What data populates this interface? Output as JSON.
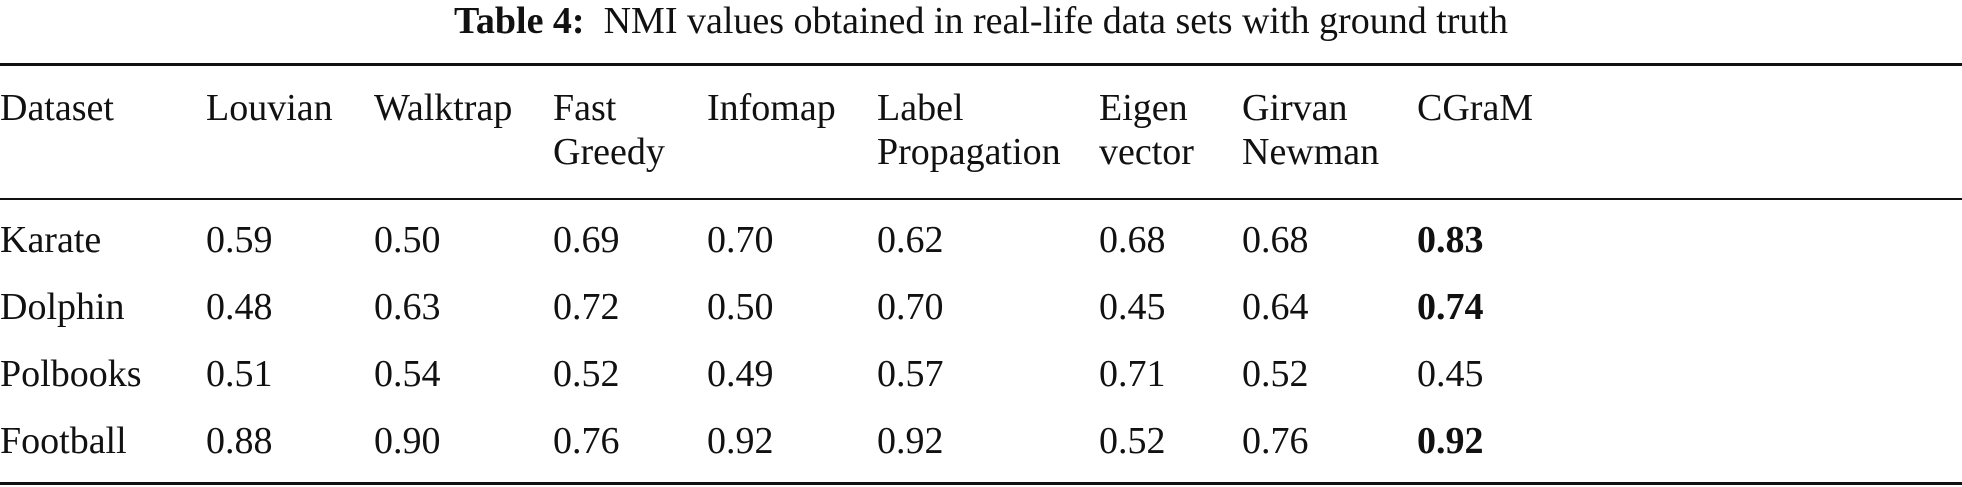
{
  "caption": {
    "label": "Table 4:",
    "text": "NMI values obtained in real-life data sets with ground truth"
  },
  "columns": [
    {
      "lines": [
        "Dataset"
      ]
    },
    {
      "lines": [
        "Louvian"
      ]
    },
    {
      "lines": [
        "Walktrap"
      ]
    },
    {
      "lines": [
        "Fast",
        "Greedy"
      ]
    },
    {
      "lines": [
        "Infomap"
      ]
    },
    {
      "lines": [
        "Label",
        "Propagation"
      ]
    },
    {
      "lines": [
        "Eigen",
        "vector"
      ]
    },
    {
      "lines": [
        "Girvan",
        "Newman"
      ]
    },
    {
      "lines": [
        "CGraM"
      ]
    }
  ],
  "rows": [
    {
      "cells": [
        "Karate",
        "0.59",
        "0.50",
        "0.69",
        "0.70",
        "0.62",
        "0.68",
        "0.68",
        "0.83"
      ],
      "bold": [
        8
      ]
    },
    {
      "cells": [
        "Dolphin",
        "0.48",
        "0.63",
        "0.72",
        "0.50",
        "0.70",
        "0.45",
        "0.64",
        "0.74"
      ],
      "bold": [
        8
      ]
    },
    {
      "cells": [
        "Polbooks",
        "0.51",
        "0.54",
        "0.52",
        "0.49",
        "0.57",
        "0.71",
        "0.52",
        "0.45"
      ],
      "bold": []
    },
    {
      "cells": [
        "Football",
        "0.88",
        "0.90",
        "0.76",
        "0.92",
        "0.92",
        "0.52",
        "0.76",
        "0.92"
      ],
      "bold": [
        8
      ]
    }
  ]
}
